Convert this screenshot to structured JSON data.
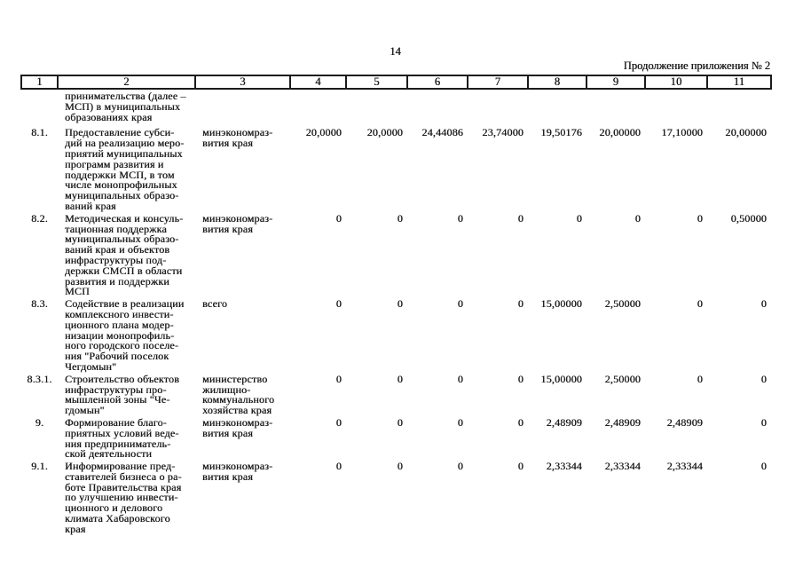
{
  "page": {
    "number": "14",
    "continuation_note": "Продолжение приложения № 2"
  },
  "table": {
    "column_headers": [
      "1",
      "2",
      "3",
      "4",
      "5",
      "6",
      "7",
      "8",
      "9",
      "10",
      "11"
    ],
    "carryover_text": "принимательства (далее –\nМСП) в муниципальных\nобразованиях края",
    "rows": [
      {
        "num": "8.1.",
        "name": "Предоставление субси-\nдий на реализацию меро-\nприятий муниципальных\nпрограмм развития и\nподдержки МСП, в том\nчисле монопрофильных\nмуниципальных образо-\nваний края",
        "executor": "минэкономраз-\nвития края",
        "values": [
          "20,0000",
          "20,0000",
          "24,44086",
          "23,74000",
          "19,50176",
          "20,00000",
          "17,10000",
          "20,00000"
        ]
      },
      {
        "num": "8.2.",
        "name": "Методическая и консуль-\nтационная поддержка\nмуниципальных образо-\nваний края и объектов\nинфраструктуры под-\nдержки СМСП в области\nразвития и поддержки\nМСП",
        "executor": "минэкономраз-\nвития края",
        "values": [
          "0",
          "0",
          "0",
          "0",
          "0",
          "0",
          "0",
          "0,50000"
        ]
      },
      {
        "num": "8.3.",
        "name": "Содействие в реализации\nкомплексного инвести-\nционного плана модер-\nнизации монопрофиль-\nного городского поселе-\nния \"Рабочий поселок\nЧегдомын\"",
        "executor": "всего",
        "values": [
          "0",
          "0",
          "0",
          "0",
          "15,00000",
          "2,50000",
          "0",
          "0"
        ]
      },
      {
        "num": "8.3.1.",
        "name": "Строительство объектов\nинфраструктуры про-\nмышленной зоны \"Че-\nгдомын\"",
        "executor": "министерство\nжилищно-\nкоммунального\nхозяйства края",
        "values": [
          "0",
          "0",
          "0",
          "0",
          "15,00000",
          "2,50000",
          "0",
          "0"
        ]
      },
      {
        "num": "9.",
        "name": "Формирование благо-\nприятных условий веде-\nния предприниматель-\nской деятельности",
        "executor": "минэкономраз-\nвития края",
        "values": [
          "0",
          "0",
          "0",
          "0",
          "2,48909",
          "2,48909",
          "2,48909",
          "0"
        ]
      },
      {
        "num": "9.1.",
        "name": "Информирование пред-\nставителей бизнеса о ра-\nботе Правительства края\nпо улучшению инвести-\nционного и делового\nклимата Хабаровского\nкрая",
        "executor": "минэкономраз-\nвития края",
        "values": [
          "0",
          "0",
          "0",
          "0",
          "2,33344",
          "2,33344",
          "2,33344",
          "0"
        ]
      }
    ]
  }
}
